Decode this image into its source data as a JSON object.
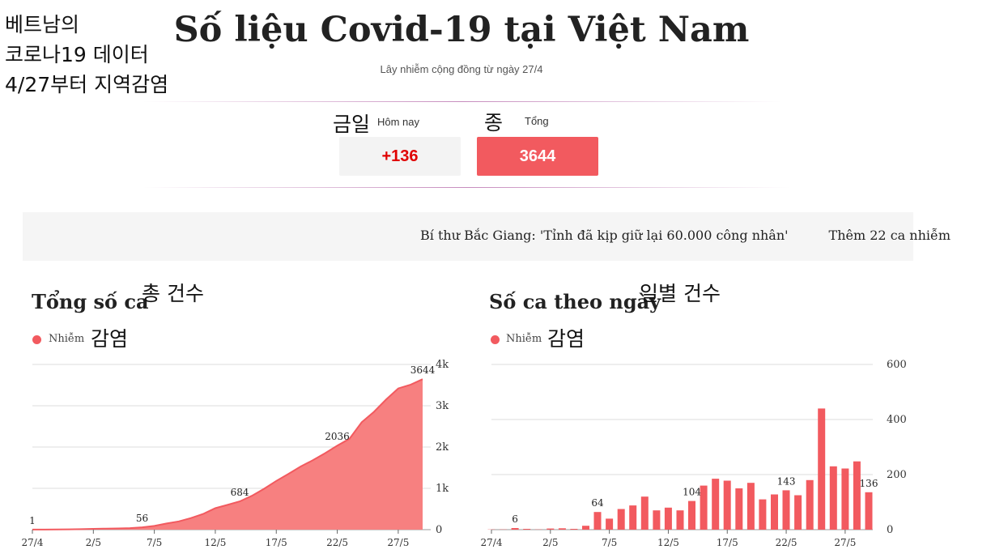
{
  "annotations": {
    "title_lines": [
      "베트남의",
      "코로나19 데이터",
      "4/27부터 지역감염"
    ],
    "today": "금일",
    "total": "종",
    "chart1": "총 건수",
    "chart2": "일별 건수",
    "infected": "감염"
  },
  "header": {
    "title": "Số liệu Covid-19 tại Việt Nam",
    "subtitle": "Lây nhiễm cộng đồng từ ngày 27/4"
  },
  "stats": {
    "today_label": "Hôm nay",
    "today_value": "+136",
    "total_label": "Tổng",
    "total_value": "3644"
  },
  "ticker": {
    "items": [
      "Bí thư Bắc Giang: 'Tỉnh đã kịp giữ lại 60.000 công nhân'",
      "Thêm 22 ca nhiễm"
    ]
  },
  "colors": {
    "accent": "#f25a5f",
    "area_fill": "#f78080",
    "today_text": "#e00000"
  },
  "chart_data": [
    {
      "type": "area",
      "title": "Tổng số ca",
      "legend": "Nhiễm",
      "x_labels": [
        "27/4",
        "2/5",
        "7/5",
        "12/5",
        "17/5",
        "22/5",
        "27/5"
      ],
      "x_label_days": [
        0,
        5,
        10,
        15,
        20,
        25,
        30
      ],
      "y_ticks": [
        "0",
        "1k",
        "2k",
        "3k",
        "4k"
      ],
      "ylim": [
        0,
        4000
      ],
      "x": [
        0,
        1,
        2,
        3,
        4,
        5,
        6,
        7,
        8,
        9,
        10,
        11,
        12,
        13,
        14,
        15,
        16,
        17,
        18,
        19,
        20,
        21,
        22,
        23,
        24,
        25,
        26,
        27,
        28,
        29,
        30,
        31,
        32
      ],
      "values": [
        1,
        2,
        5,
        8,
        12,
        20,
        25,
        30,
        38,
        56,
        90,
        150,
        200,
        280,
        380,
        520,
        600,
        684,
        820,
        990,
        1180,
        1350,
        1530,
        1680,
        1850,
        2036,
        2200,
        2600,
        2850,
        3150,
        3420,
        3508,
        3644
      ],
      "data_labels": [
        {
          "i": 0,
          "text": "1"
        },
        {
          "i": 9,
          "text": "56"
        },
        {
          "i": 17,
          "text": "684"
        },
        {
          "i": 25,
          "text": "2036"
        },
        {
          "i": 32,
          "text": "3644"
        }
      ]
    },
    {
      "type": "bar",
      "title": "Số ca theo ngày",
      "legend": "Nhiễm",
      "x_labels": [
        "27/4",
        "2/5",
        "7/5",
        "12/5",
        "17/5",
        "22/5",
        "27/5"
      ],
      "x_label_days": [
        0,
        5,
        10,
        15,
        20,
        25,
        30
      ],
      "y_ticks": [
        "0",
        "200",
        "400",
        "600"
      ],
      "ylim": [
        0,
        600
      ],
      "x": [
        0,
        1,
        2,
        3,
        4,
        5,
        6,
        7,
        8,
        9,
        10,
        11,
        12,
        13,
        14,
        15,
        16,
        17,
        18,
        19,
        20,
        21,
        22,
        23,
        24,
        25,
        26,
        27,
        28,
        29,
        30,
        31,
        32
      ],
      "values": [
        1,
        1,
        6,
        3,
        1,
        4,
        5,
        3,
        14,
        64,
        40,
        75,
        88,
        120,
        70,
        80,
        70,
        104,
        160,
        185,
        178,
        150,
        170,
        110,
        128,
        143,
        125,
        180,
        440,
        230,
        222,
        248,
        136
      ],
      "data_labels": [
        {
          "i": 2,
          "text": "6"
        },
        {
          "i": 9,
          "text": "64"
        },
        {
          "i": 17,
          "text": "104"
        },
        {
          "i": 25,
          "text": "143"
        },
        {
          "i": 32,
          "text": "136"
        }
      ]
    }
  ]
}
